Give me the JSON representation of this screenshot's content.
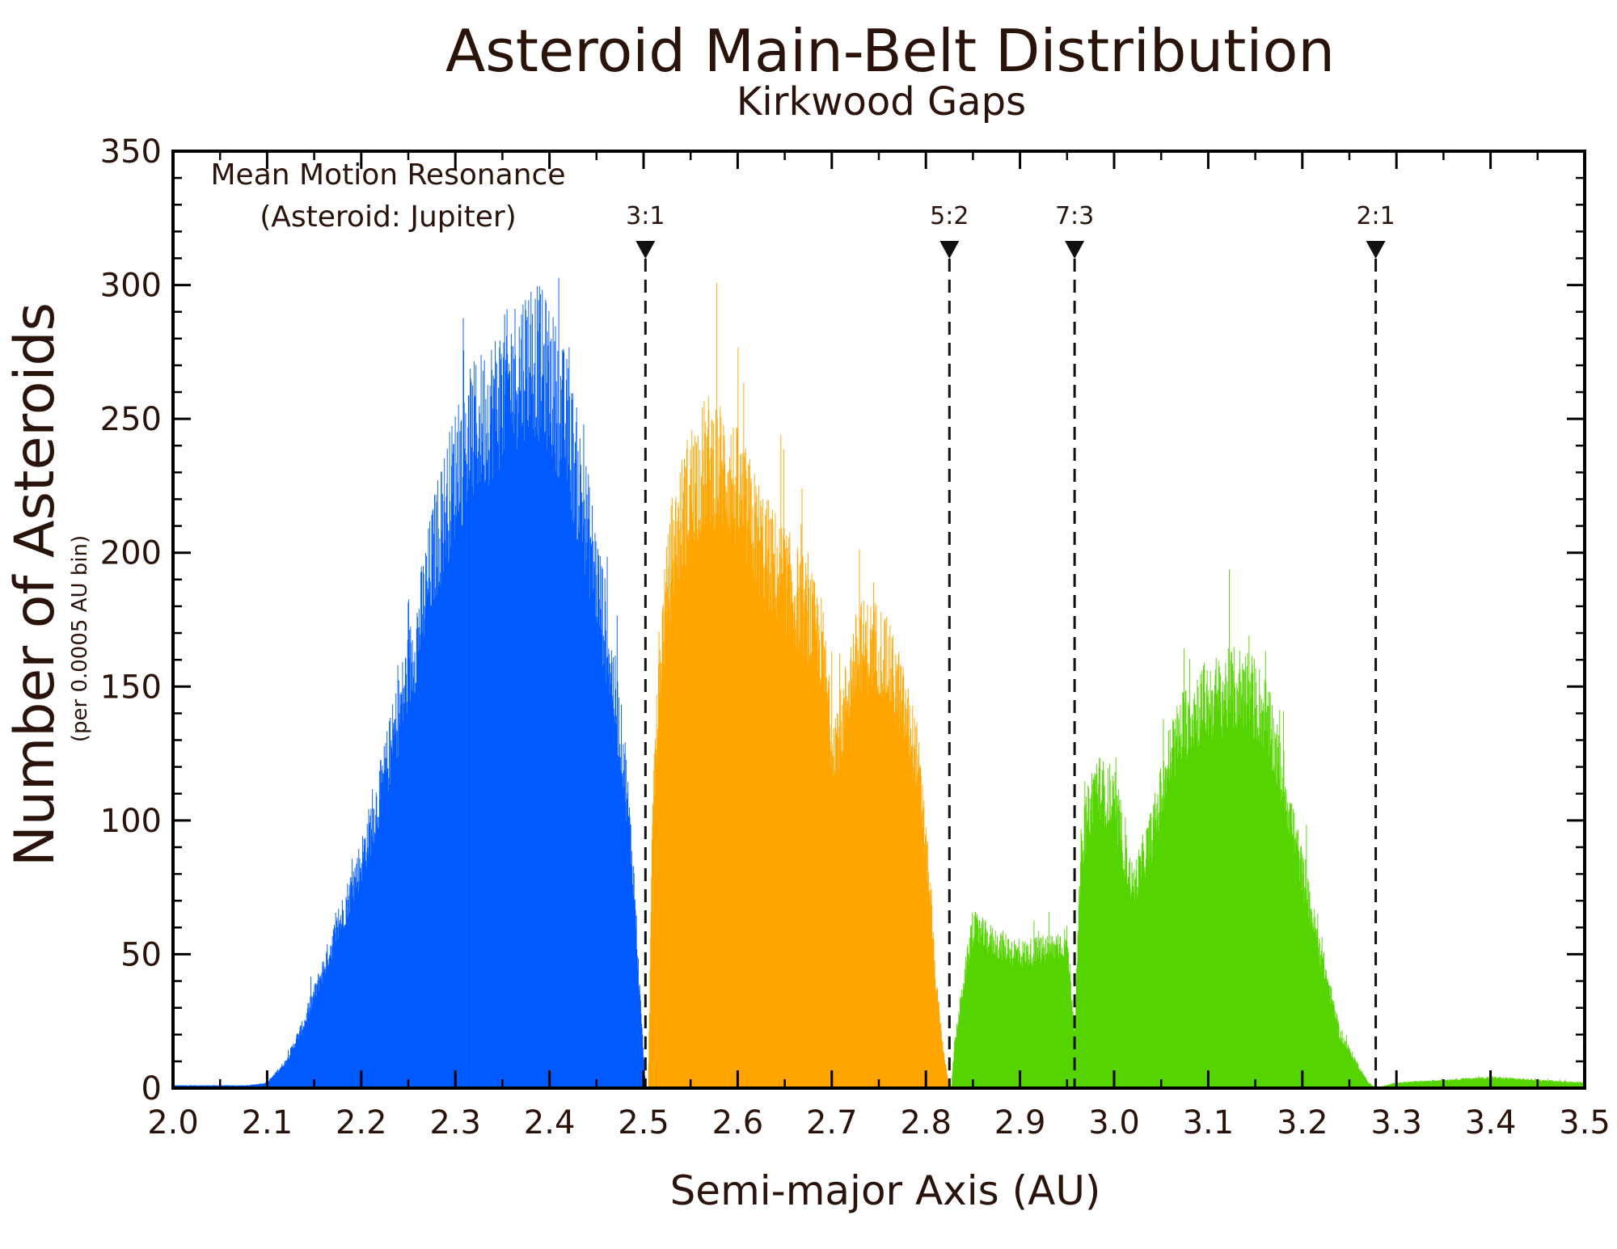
{
  "chart_data": {
    "type": "bar",
    "title": "Asteroid Main-Belt Distribution",
    "subtitle": "Kirkwood Gaps",
    "xlabel": "Semi-major Axis (AU)",
    "ylabel": "Number of Asteroids",
    "ylabel_sub": "(per 0.0005 AU bin)",
    "xlim": [
      2.0,
      3.5
    ],
    "ylim": [
      0,
      350
    ],
    "x_ticks": [
      "2.0",
      "2.1",
      "2.2",
      "2.3",
      "2.4",
      "2.5",
      "2.6",
      "2.7",
      "2.8",
      "2.9",
      "3.0",
      "3.1",
      "3.2",
      "3.3",
      "3.4",
      "3.5"
    ],
    "y_ticks": [
      "0",
      "50",
      "100",
      "150",
      "200",
      "250",
      "300",
      "350"
    ],
    "grid": false,
    "annotation_title": [
      "Mean Motion Resonance",
      "(Asteroid: Jupiter)"
    ],
    "resonances": [
      {
        "label": "3:1",
        "x": 2.502
      },
      {
        "label": "5:2",
        "x": 2.825
      },
      {
        "label": "7:3",
        "x": 2.958
      },
      {
        "label": "2:1",
        "x": 3.278
      }
    ],
    "bin_width": 0.0005,
    "series": [
      {
        "color": "#005aff",
        "x_range": [
          2.0,
          2.502
        ],
        "envelope_x": [
          2.0,
          2.08,
          2.1,
          2.12,
          2.14,
          2.16,
          2.18,
          2.2,
          2.22,
          2.24,
          2.26,
          2.28,
          2.3,
          2.32,
          2.34,
          2.36,
          2.38,
          2.4,
          2.42,
          2.44,
          2.46,
          2.48,
          2.49,
          2.495,
          2.502
        ],
        "envelope_y": [
          1,
          1,
          2,
          10,
          25,
          45,
          65,
          85,
          110,
          140,
          170,
          205,
          230,
          245,
          255,
          265,
          275,
          265,
          245,
          210,
          170,
          120,
          75,
          40,
          0
        ]
      },
      {
        "color": "#ffa500",
        "x_range": [
          2.505,
          2.825
        ],
        "envelope_x": [
          2.505,
          2.51,
          2.52,
          2.53,
          2.55,
          2.57,
          2.59,
          2.61,
          2.63,
          2.65,
          2.67,
          2.69,
          2.7,
          2.71,
          2.72,
          2.73,
          2.75,
          2.77,
          2.79,
          2.8,
          2.805,
          2.81,
          2.82,
          2.825
        ],
        "envelope_y": [
          5,
          110,
          170,
          200,
          225,
          235,
          230,
          215,
          200,
          190,
          180,
          165,
          130,
          135,
          155,
          165,
          165,
          150,
          125,
          90,
          70,
          40,
          10,
          0
        ]
      },
      {
        "color": "#55d400",
        "x_range": [
          2.827,
          3.5
        ],
        "envelope_x": [
          2.827,
          2.83,
          2.84,
          2.85,
          2.87,
          2.9,
          2.93,
          2.95,
          2.958,
          2.965,
          2.98,
          3.0,
          3.02,
          3.04,
          3.06,
          3.08,
          3.1,
          3.12,
          3.14,
          3.16,
          3.18,
          3.2,
          3.22,
          3.24,
          3.26,
          3.27,
          3.278,
          3.3,
          3.35,
          3.4,
          3.45,
          3.5
        ],
        "envelope_y": [
          0,
          15,
          40,
          60,
          55,
          50,
          52,
          55,
          20,
          90,
          115,
          105,
          75,
          95,
          125,
          140,
          145,
          148,
          150,
          140,
          115,
          80,
          50,
          20,
          8,
          2,
          0,
          2,
          3,
          4,
          3,
          2
        ]
      }
    ]
  }
}
